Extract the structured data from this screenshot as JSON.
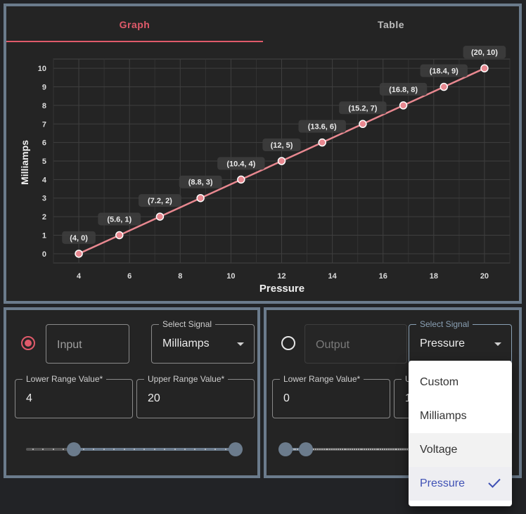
{
  "tabs": {
    "graph": "Graph",
    "table": "Table"
  },
  "colors": {
    "accent": "#e05a6a",
    "panel_border": "#6b7b8c",
    "selected_option": "#3f51b5"
  },
  "chart_data": {
    "type": "line",
    "xlabel": "Pressure",
    "ylabel": "Milliamps",
    "xlim": [
      3,
      21
    ],
    "ylim": [
      -0.5,
      10.5
    ],
    "xticks": [
      4,
      6,
      8,
      10,
      12,
      14,
      16,
      18,
      20
    ],
    "yticks": [
      0,
      1,
      2,
      3,
      4,
      5,
      6,
      7,
      8,
      9,
      10
    ],
    "grid": true,
    "x": [
      4,
      5.6,
      7.2,
      8.8,
      10.4,
      12,
      13.6,
      15.2,
      16.8,
      18.4,
      20
    ],
    "y": [
      0,
      1,
      2,
      3,
      4,
      5,
      6,
      7,
      8,
      9,
      10
    ],
    "point_labels": [
      "(4, 0)",
      "(5.6, 1)",
      "(7.2, 2)",
      "(8.8, 3)",
      "(10.4, 4)",
      "(12, 5)",
      "(13.6, 6)",
      "(15.2, 7)",
      "(16.8, 8)",
      "(18.4, 9)",
      "(20, 10)"
    ]
  },
  "input": {
    "selected": true,
    "label": "Input",
    "signal_legend": "Select Signal",
    "signal": "Milliamps",
    "lower_legend": "Lower Range Value*",
    "lower_value": "4",
    "upper_legend": "Upper Range Value*",
    "upper_value": "20",
    "slider": {
      "lower_fraction": 0.2,
      "upper_fraction": 1.0
    }
  },
  "output": {
    "selected": false,
    "label": "Output",
    "signal_legend": "Select Signal",
    "signal": "Pressure",
    "lower_legend": "Lower Range Value*",
    "lower_value": "0",
    "upper_legend": "U",
    "upper_value": "1",
    "slider": {
      "lower_fraction": 0.0,
      "upper_fraction": 0.1
    }
  },
  "signal_menu": {
    "options": [
      "Custom",
      "Milliamps",
      "Voltage",
      "Pressure"
    ],
    "selected": "Pressure",
    "check_icon": "check-icon"
  }
}
